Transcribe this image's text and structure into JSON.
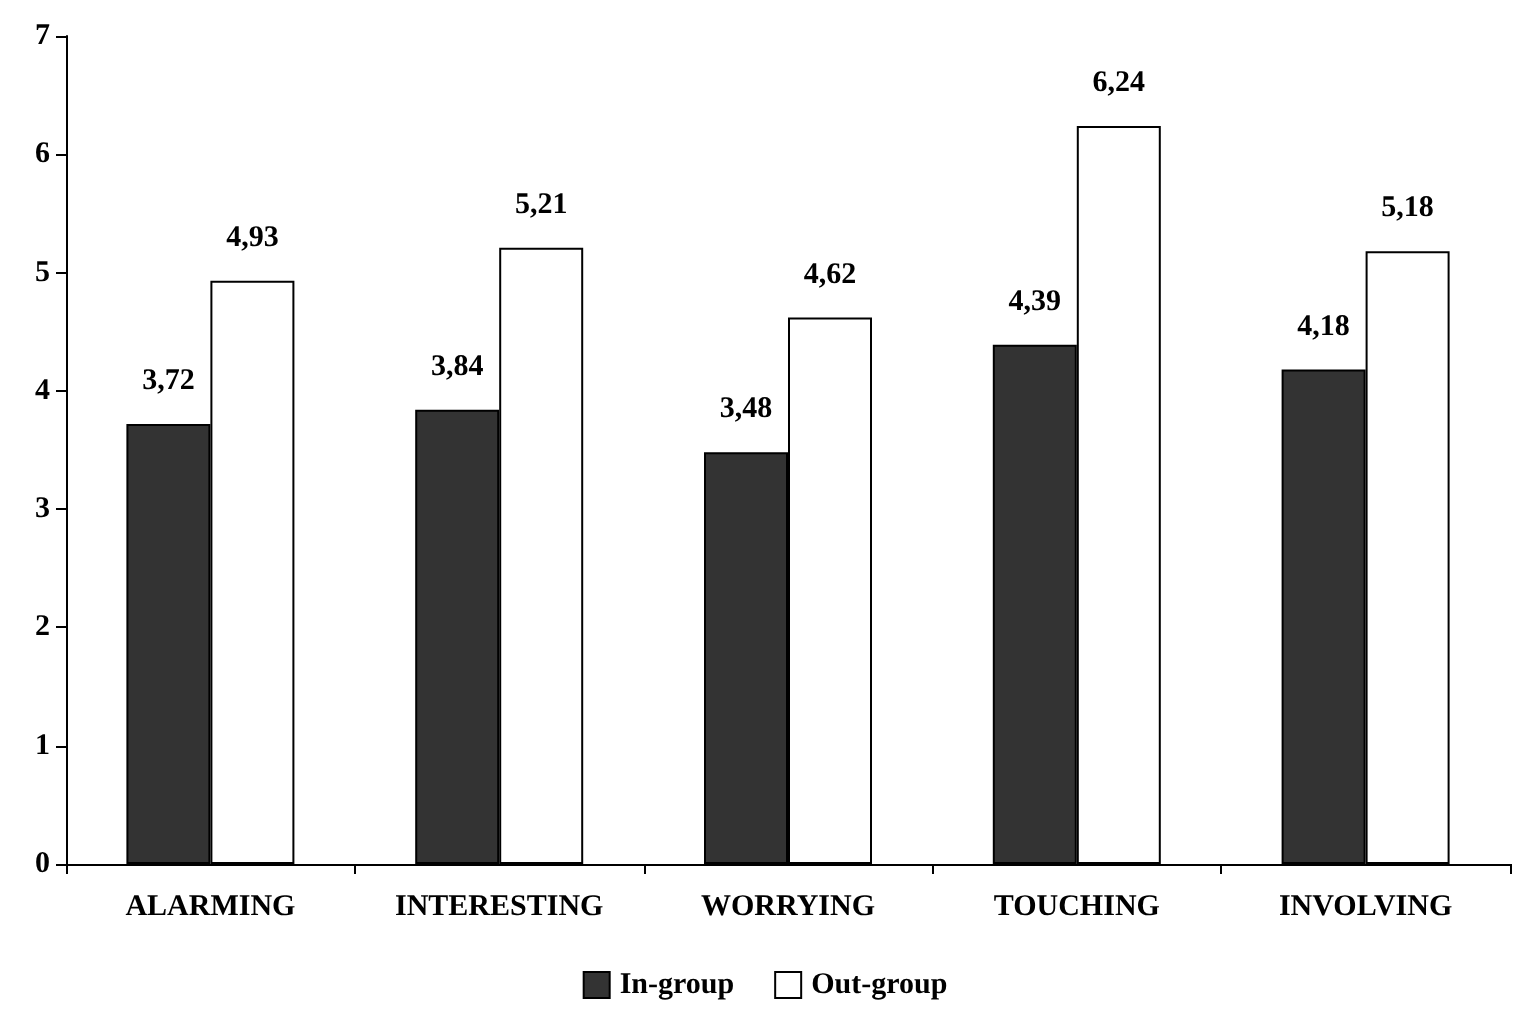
{
  "chart_data": {
    "type": "bar",
    "categories": [
      "ALARMING",
      "INTERESTING",
      "WORRYING",
      "TOUCHING",
      "INVOLVING"
    ],
    "series": [
      {
        "name": "In-group",
        "color": "#333333",
        "values": [
          3.72,
          3.84,
          3.48,
          4.39,
          4.18
        ],
        "value_labels": [
          "3,72",
          "3,84",
          "3,48",
          "4,39",
          "4,18"
        ]
      },
      {
        "name": "Out-group",
        "color": "#ffffff",
        "values": [
          4.93,
          5.21,
          4.62,
          6.24,
          5.18
        ],
        "value_labels": [
          "4,93",
          "5,21",
          "4,62",
          "6,24",
          "5,18"
        ]
      }
    ],
    "ylim": [
      0,
      7
    ],
    "yticks": [
      0,
      1,
      2,
      3,
      4,
      5,
      6,
      7
    ],
    "grid": false,
    "legend": "bottom"
  }
}
